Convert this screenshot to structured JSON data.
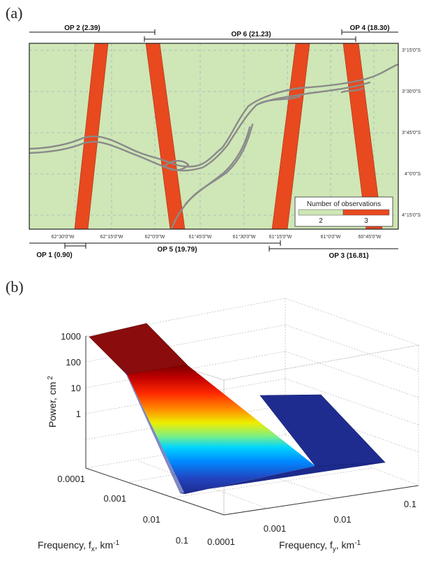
{
  "panel_a": {
    "label": "(a)",
    "passes_top": [
      {
        "name": "OP 2 (2.39)"
      },
      {
        "name": "OP 6 (21.23)"
      },
      {
        "name": "OP 4 (18.30)"
      }
    ],
    "passes_bottom": [
      {
        "name": "OP 1 (0.90)"
      },
      {
        "name": "OP 5 (19.79)"
      },
      {
        "name": "OP 3 (16.81)"
      }
    ],
    "lon_ticks": [
      "62°30'0\"W",
      "62°15'0\"W",
      "62°0'0\"W",
      "61°45'0\"W",
      "61°30'0\"W",
      "61°15'0\"W",
      "61°0'0\"W",
      "60°45'0\"W"
    ],
    "lat_ticks": [
      "3°15'0\"S",
      "3°30'0\"S",
      "3°45'0\"S",
      "4°0'0\"S",
      "4°15'0\"S"
    ],
    "legend": {
      "title": "Number of observations",
      "items": [
        {
          "label": "2",
          "color": "#cfe6b6"
        },
        {
          "label": "3",
          "color": "#e8491f"
        }
      ]
    },
    "colors": {
      "background": "#cfe6b6",
      "swath": "#e8491f",
      "river": "#8a8a8a"
    }
  },
  "panel_b": {
    "label": "(b)",
    "chart_data": {
      "type": "surface",
      "ylabel": "Power, cm",
      "ylabel_sup": "2",
      "xlabel": "Frequency, f",
      "xlabel_sub": "x",
      "xlabel_unit": ", km",
      "xlabel_sup": "-1",
      "zlabel": "Frequency, f",
      "zlabel_sub": "y",
      "zlabel_unit": ", km",
      "zlabel_sup": "-1",
      "power_ticks": [
        "1000",
        "100",
        "10",
        "1"
      ],
      "fx_ticks": [
        "0.0001",
        "0.001",
        "0.01",
        "0.1"
      ],
      "fy_ticks": [
        "0.0001",
        "0.001",
        "0.01",
        "0.1"
      ],
      "colormap": [
        "#7a0000",
        "#c80000",
        "#ff3000",
        "#ff9a00",
        "#f0f000",
        "#7cf07c",
        "#00d8ff",
        "#0090ff",
        "#2040c0",
        "#1c2a8c"
      ]
    }
  }
}
